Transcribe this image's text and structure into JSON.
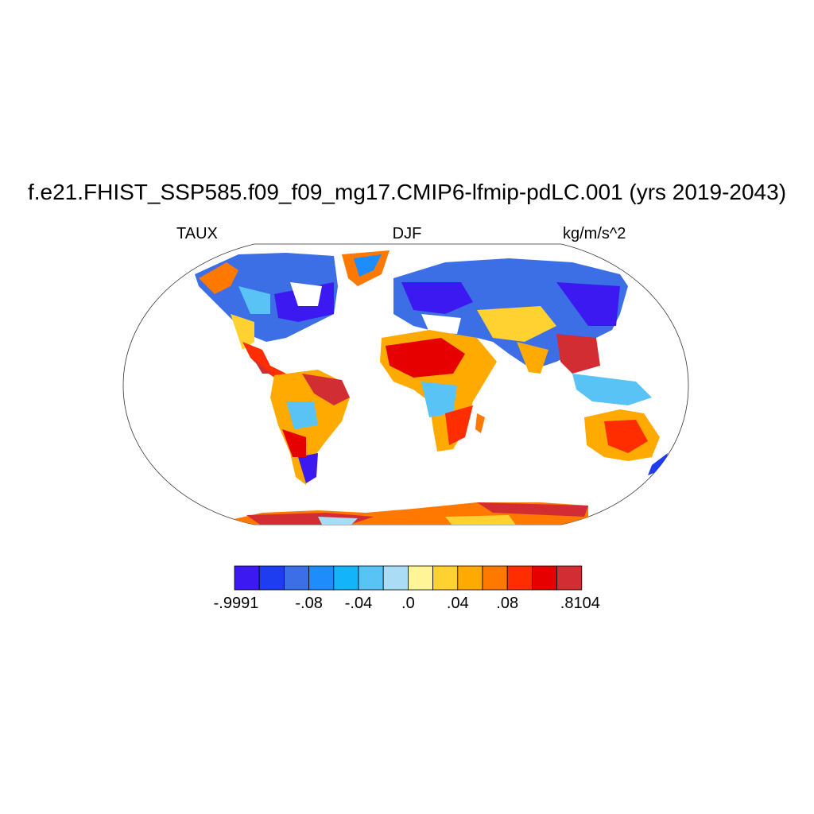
{
  "title": "f.e21.FHIST_SSP585.f09_f09_mg17.CMIP6-lfmip-pdLC.001 (yrs 2019-2043)",
  "variable": "TAUX",
  "season": "DJF",
  "units": "kg/m/s^2",
  "colorbar": {
    "colors": [
      "#3c19f0",
      "#1e3cf0",
      "#3c6ee6",
      "#1e8cfa",
      "#14b4fa",
      "#5ac3f5",
      "#aadcf5",
      "#fff596",
      "#ffd232",
      "#ffaa00",
      "#ff7800",
      "#ff2d00",
      "#e60000",
      "#d22d32"
    ],
    "tick_labels": [
      ".9991",
      ".08",
      ".04",
      ".0",
      ".04",
      ".08",
      ".8104"
    ],
    "tick_labels_display": [
      "-.9991",
      "-.08",
      "-.04",
      ".0",
      ".04",
      ".08",
      ".8104"
    ]
  }
}
